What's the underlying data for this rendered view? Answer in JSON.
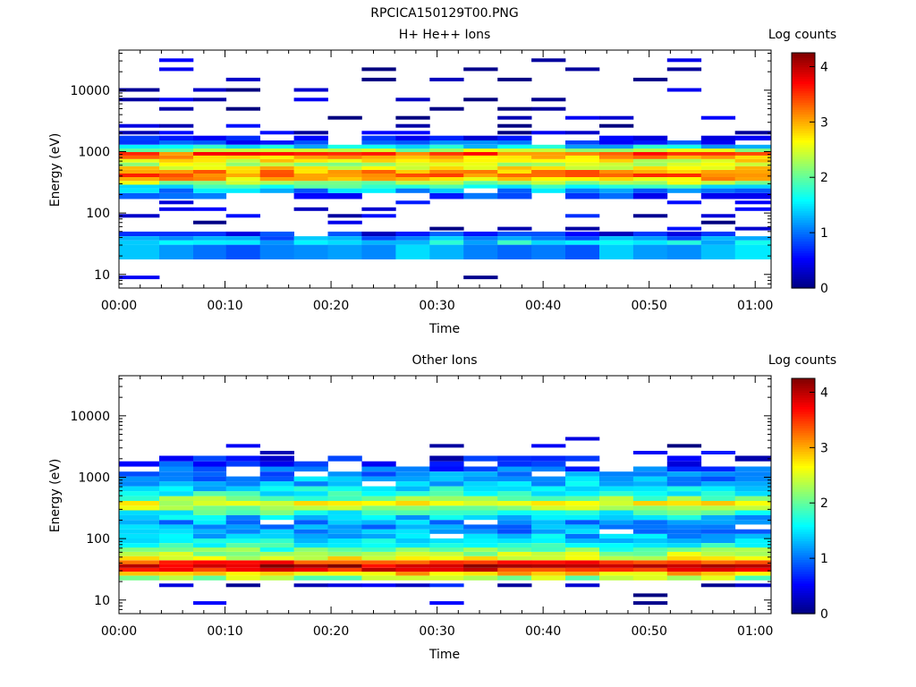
{
  "figure_title": "RPCICA150129T00.PNG",
  "chart_data": [
    {
      "type": "heatmap",
      "title": "H+ He++ Ions",
      "xlabel": "Time",
      "ylabel": "Energy (eV)",
      "y_scale": "log",
      "ylim": [
        6,
        45000
      ],
      "x_range_minutes": [
        0,
        61.5
      ],
      "x_tick_labels": [
        "00:00",
        "00:10",
        "00:20",
        "00:30",
        "00:40",
        "00:50",
        "01:00"
      ],
      "x_tick_minutes": [
        0,
        10,
        20,
        30,
        40,
        50,
        60
      ],
      "y_tick_labels": [
        "10",
        "100",
        "1000",
        "10000"
      ],
      "y_tick_values": [
        10,
        100,
        1000,
        10000
      ],
      "colorbar": {
        "label": "Log counts",
        "range": [
          0,
          4.25
        ],
        "tick_labels": [
          "0",
          "1",
          "2",
          "3",
          "4"
        ]
      },
      "colormap": [
        "#00007f",
        "#0000ff",
        "#007fff",
        "#00ffff",
        "#7fff7f",
        "#ffff00",
        "#ff7f00",
        "#ff0000",
        "#7f0000"
      ],
      "time_columns_minutes": [
        0,
        3.8,
        7.0,
        10.1,
        13.3,
        16.5,
        19.7,
        22.9,
        26.1,
        29.3,
        32.5,
        35.7,
        38.9,
        42.1,
        45.3,
        48.5,
        51.7,
        54.9,
        58.1,
        61.5
      ],
      "energy_profile": [
        {
          "energy": 9,
          "log_counts": 0.2,
          "occupancy": 0.12
        },
        {
          "energy": 11,
          "log_counts": 0.2,
          "occupancy": 0.05
        },
        {
          "energy": 28,
          "log_counts": 1.2,
          "occupancy": 0.95
        },
        {
          "energy": 33,
          "log_counts": 1.5,
          "occupancy": 0.95
        },
        {
          "energy": 39,
          "log_counts": 1.1,
          "occupancy": 0.95
        },
        {
          "energy": 45,
          "log_counts": 0.6,
          "occupancy": 0.8
        },
        {
          "energy": 55,
          "log_counts": 0.3,
          "occupancy": 0.3
        },
        {
          "energy": 70,
          "log_counts": 0.3,
          "occupancy": 0.3
        },
        {
          "energy": 90,
          "log_counts": 0.4,
          "occupancy": 0.35
        },
        {
          "energy": 115,
          "log_counts": 0.4,
          "occupancy": 0.35
        },
        {
          "energy": 150,
          "log_counts": 0.5,
          "occupancy": 0.45
        },
        {
          "energy": 190,
          "log_counts": 0.8,
          "occupancy": 0.7
        },
        {
          "energy": 235,
          "log_counts": 1.2,
          "occupancy": 0.9
        },
        {
          "energy": 270,
          "log_counts": 1.7,
          "occupancy": 1.0
        },
        {
          "energy": 310,
          "log_counts": 2.3,
          "occupancy": 1.0
        },
        {
          "energy": 360,
          "log_counts": 2.9,
          "occupancy": 1.0
        },
        {
          "energy": 410,
          "log_counts": 3.3,
          "occupancy": 1.0
        },
        {
          "energy": 470,
          "log_counts": 3.1,
          "occupancy": 1.0
        },
        {
          "energy": 540,
          "log_counts": 2.7,
          "occupancy": 1.0
        },
        {
          "energy": 620,
          "log_counts": 2.4,
          "occupancy": 1.0
        },
        {
          "energy": 710,
          "log_counts": 2.6,
          "occupancy": 1.0
        },
        {
          "energy": 810,
          "log_counts": 3.0,
          "occupancy": 1.0
        },
        {
          "energy": 920,
          "log_counts": 3.4,
          "occupancy": 1.0
        },
        {
          "energy": 1050,
          "log_counts": 2.3,
          "occupancy": 1.0
        },
        {
          "energy": 1200,
          "log_counts": 1.5,
          "occupancy": 1.0
        },
        {
          "energy": 1400,
          "log_counts": 0.8,
          "occupancy": 0.9
        },
        {
          "energy": 1650,
          "log_counts": 0.5,
          "occupancy": 0.7
        },
        {
          "energy": 2000,
          "log_counts": 0.3,
          "occupancy": 0.5
        },
        {
          "energy": 2600,
          "log_counts": 0.3,
          "occupancy": 0.35
        },
        {
          "energy": 3500,
          "log_counts": 0.2,
          "occupancy": 0.3
        },
        {
          "energy": 5000,
          "log_counts": 0.2,
          "occupancy": 0.3
        },
        {
          "energy": 7000,
          "log_counts": 0.2,
          "occupancy": 0.3
        },
        {
          "energy": 10000,
          "log_counts": 0.2,
          "occupancy": 0.3
        },
        {
          "energy": 15000,
          "log_counts": 0.2,
          "occupancy": 0.3
        },
        {
          "energy": 22000,
          "log_counts": 0.2,
          "occupancy": 0.3
        },
        {
          "energy": 32000,
          "log_counts": 0.2,
          "occupancy": 0.3
        }
      ]
    },
    {
      "type": "heatmap",
      "title": "Other Ions",
      "xlabel": "Time",
      "ylabel": "Energy (eV)",
      "y_scale": "log",
      "ylim": [
        6,
        45000
      ],
      "x_range_minutes": [
        0,
        61.5
      ],
      "x_tick_labels": [
        "00:00",
        "00:10",
        "00:20",
        "00:30",
        "00:40",
        "00:50",
        "01:00"
      ],
      "x_tick_minutes": [
        0,
        10,
        20,
        30,
        40,
        50,
        60
      ],
      "y_tick_labels": [
        "10",
        "100",
        "1000",
        "10000"
      ],
      "y_tick_values": [
        10,
        100,
        1000,
        10000
      ],
      "colorbar": {
        "label": "Log counts",
        "range": [
          0,
          4.25
        ],
        "tick_labels": [
          "0",
          "1",
          "2",
          "3",
          "4"
        ]
      },
      "colormap": [
        "#00007f",
        "#0000ff",
        "#007fff",
        "#00ffff",
        "#7fff7f",
        "#ffff00",
        "#ff7f00",
        "#ff0000",
        "#7f0000"
      ],
      "time_columns_minutes": [
        0,
        3.8,
        7.0,
        10.1,
        13.3,
        16.5,
        19.7,
        22.9,
        26.1,
        29.3,
        32.5,
        35.7,
        38.9,
        42.1,
        45.3,
        48.5,
        51.7,
        54.9,
        58.1,
        61.5
      ],
      "energy_profile": [
        {
          "energy": 9,
          "log_counts": 0.2,
          "occupancy": 0.15
        },
        {
          "energy": 11,
          "log_counts": 0.3,
          "occupancy": 0.1
        },
        {
          "energy": 19,
          "log_counts": 0.4,
          "occupancy": 0.45
        },
        {
          "energy": 23,
          "log_counts": 2.2,
          "occupancy": 1.0
        },
        {
          "energy": 27,
          "log_counts": 2.9,
          "occupancy": 1.0
        },
        {
          "energy": 31,
          "log_counts": 3.7,
          "occupancy": 1.0
        },
        {
          "energy": 36,
          "log_counts": 4.0,
          "occupancy": 1.0
        },
        {
          "energy": 41,
          "log_counts": 3.5,
          "occupancy": 1.0
        },
        {
          "energy": 48,
          "log_counts": 2.6,
          "occupancy": 1.0
        },
        {
          "energy": 56,
          "log_counts": 2.3,
          "occupancy": 1.0
        },
        {
          "energy": 66,
          "log_counts": 2.0,
          "occupancy": 1.0
        },
        {
          "energy": 78,
          "log_counts": 1.7,
          "occupancy": 1.0
        },
        {
          "energy": 92,
          "log_counts": 1.5,
          "occupancy": 0.95
        },
        {
          "energy": 110,
          "log_counts": 1.3,
          "occupancy": 0.95
        },
        {
          "energy": 130,
          "log_counts": 1.2,
          "occupancy": 0.95
        },
        {
          "energy": 155,
          "log_counts": 1.2,
          "occupancy": 0.95
        },
        {
          "energy": 185,
          "log_counts": 1.2,
          "occupancy": 0.95
        },
        {
          "energy": 220,
          "log_counts": 1.4,
          "occupancy": 1.0
        },
        {
          "energy": 265,
          "log_counts": 1.8,
          "occupancy": 1.0
        },
        {
          "energy": 315,
          "log_counts": 2.3,
          "occupancy": 1.0
        },
        {
          "energy": 375,
          "log_counts": 2.6,
          "occupancy": 1.0
        },
        {
          "energy": 450,
          "log_counts": 2.1,
          "occupancy": 1.0
        },
        {
          "energy": 540,
          "log_counts": 1.7,
          "occupancy": 1.0
        },
        {
          "energy": 650,
          "log_counts": 1.5,
          "occupancy": 1.0
        },
        {
          "energy": 780,
          "log_counts": 1.3,
          "occupancy": 0.95
        },
        {
          "energy": 940,
          "log_counts": 1.2,
          "occupancy": 0.95
        },
        {
          "energy": 1130,
          "log_counts": 1.0,
          "occupancy": 0.9
        },
        {
          "energy": 1350,
          "log_counts": 0.9,
          "occupancy": 0.85
        },
        {
          "energy": 1650,
          "log_counts": 0.7,
          "occupancy": 0.75
        },
        {
          "energy": 2000,
          "log_counts": 0.5,
          "occupancy": 0.6
        },
        {
          "energy": 2500,
          "log_counts": 0.3,
          "occupancy": 0.35
        },
        {
          "energy": 3200,
          "log_counts": 0.2,
          "occupancy": 0.2
        },
        {
          "energy": 4300,
          "log_counts": 0.2,
          "occupancy": 0.1
        }
      ]
    }
  ]
}
